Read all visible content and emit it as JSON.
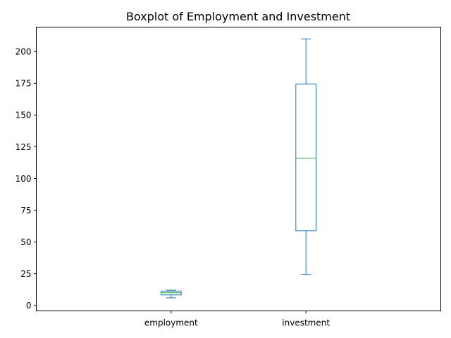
{
  "chart_data": {
    "type": "box",
    "title": "Boxplot of Employment and Investment",
    "xlabel": "",
    "ylabel": "",
    "ylim": [
      -4.3,
      219.3
    ],
    "yticks": [
      0,
      25,
      50,
      75,
      100,
      125,
      150,
      175,
      200
    ],
    "categories": [
      "employment",
      "investment"
    ],
    "boxes": [
      {
        "label": "employment",
        "whisker_low": 6,
        "q1": 8.3,
        "median": 10,
        "q3": 11.3,
        "whisker_high": 12
      },
      {
        "label": "investment",
        "whisker_low": 24.5,
        "q1": 58.8,
        "median": 116,
        "q3": 174.5,
        "whisker_high": 210
      }
    ],
    "grid": false,
    "legend": "none",
    "colors": {
      "box": "#1f77b4",
      "median": "#2ca02c",
      "axis": "#000000"
    }
  }
}
